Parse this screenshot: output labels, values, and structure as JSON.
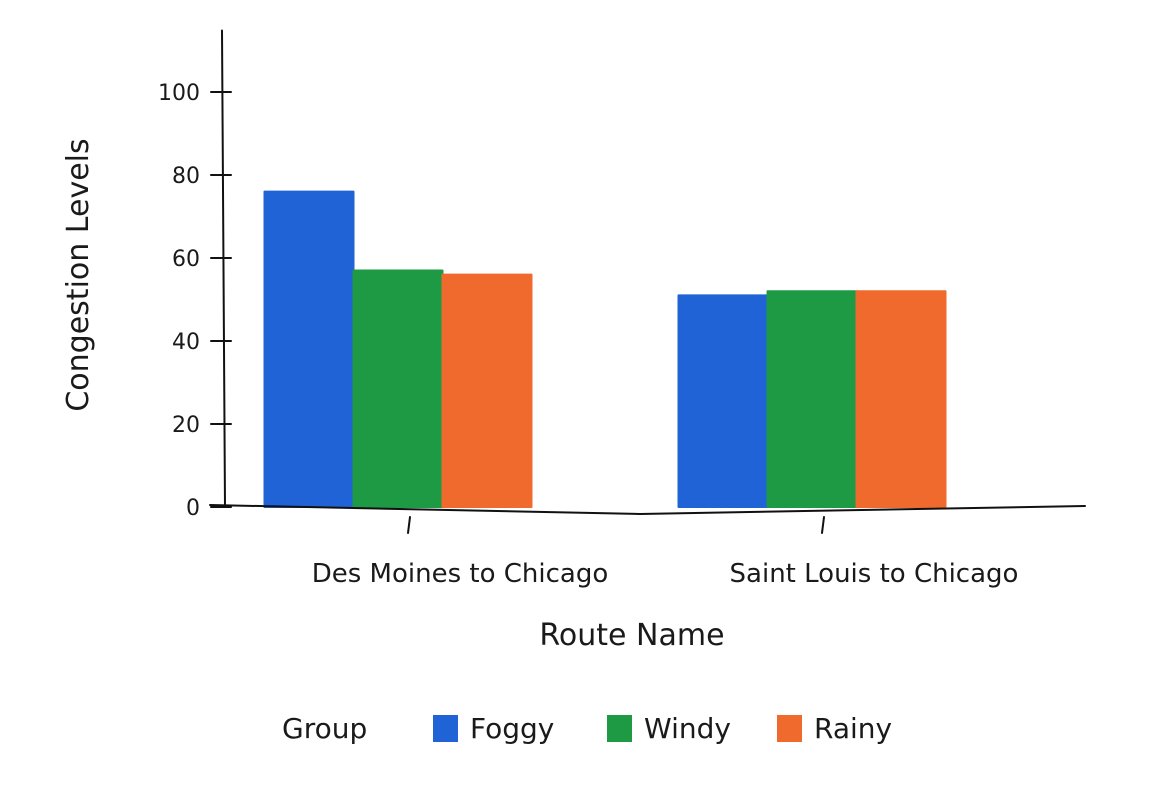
{
  "chart_data": {
    "type": "bar",
    "categories": [
      "Des Moines to Chicago",
      "Saint Louis to Chicago"
    ],
    "series": [
      {
        "name": "Foggy",
        "values": [
          76,
          51
        ],
        "color": "#1f63d6"
      },
      {
        "name": "Windy",
        "values": [
          57,
          52
        ],
        "color": "#1e9a45"
      },
      {
        "name": "Rainy",
        "values": [
          56,
          52
        ],
        "color": "#f06a2e"
      }
    ],
    "xlabel": "Route Name",
    "ylabel": "Congestion Levels",
    "ylim": [
      0,
      110
    ],
    "yticks": [
      0,
      20,
      40,
      60,
      80,
      100
    ],
    "grid": false,
    "legend": {
      "title": "Group",
      "position": "bottom"
    }
  }
}
